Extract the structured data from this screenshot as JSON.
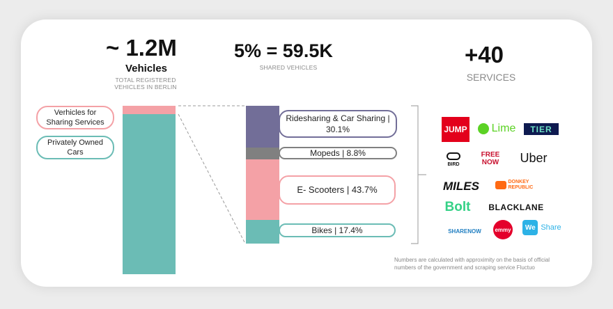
{
  "stats": {
    "total": {
      "value": "~ 1.2M",
      "label": "Vehicles",
      "caption": "TOTAL REGISTERED VEHICLES IN BERLIN"
    },
    "shared": {
      "value": "5% = 59.5K",
      "caption": "SHARED VEHICLES"
    },
    "services": {
      "value": "+40",
      "caption": "SERVICES"
    }
  },
  "legend": {
    "sharing": "Verhicles for Sharing Services",
    "private": "Privately Owned Cars"
  },
  "colors": {
    "sharing": "#f4a1a6",
    "private": "#6bbcb5",
    "ridesharing": "#726e98",
    "mopeds": "#808080",
    "scooters": "#f4a1a6",
    "bikes": "#6bbcb5"
  },
  "chart_data": [
    {
      "type": "bar",
      "stacked": true,
      "categories": [
        "Vehicles in Berlin"
      ],
      "series": [
        {
          "name": "Verhicles for Sharing Services",
          "values": [
            5
          ]
        },
        {
          "name": "Privately Owned Cars",
          "values": [
            95
          ]
        }
      ]
    },
    {
      "type": "bar",
      "stacked": true,
      "categories": [
        "Shared vehicles"
      ],
      "series": [
        {
          "name": "Ridesharing & Car Sharing",
          "values": [
            30.1
          ],
          "label": "Ridesharing & Car Sharing | 30.1%"
        },
        {
          "name": "Mopeds",
          "values": [
            8.8
          ],
          "label": "Mopeds | 8.8%"
        },
        {
          "name": "E- Scooters",
          "values": [
            43.7
          ],
          "label": "E- Scooters | 43.7%"
        },
        {
          "name": "Bikes",
          "values": [
            17.4
          ],
          "label": "Bikes | 17.4%"
        }
      ]
    }
  ],
  "logos": [
    {
      "name": "jump",
      "text": "JUMP",
      "color": "#e3001b"
    },
    {
      "name": "lime",
      "text": "Lime",
      "color": "#5cd225"
    },
    {
      "name": "tier",
      "text": "TIER",
      "color": "#0e1a50"
    },
    {
      "name": "bird",
      "text": "BIRD",
      "color": "#111111"
    },
    {
      "name": "freenow",
      "text": "FREE NOW",
      "color": "#c8102e"
    },
    {
      "name": "uber",
      "text": "Uber",
      "color": "#111111"
    },
    {
      "name": "miles",
      "text": "MILES",
      "color": "#111111"
    },
    {
      "name": "donkey",
      "text": "DONKEY REPUBLIC",
      "color": "#ff6a13"
    },
    {
      "name": "bolt",
      "text": "Bolt",
      "color": "#34d186"
    },
    {
      "name": "blacklane",
      "text": "BLACKLANE",
      "color": "#111111"
    },
    {
      "name": "sharenow",
      "text": "SHARENOW",
      "color": "#1f7ec1"
    },
    {
      "name": "emmy",
      "text": "emmy",
      "color": "#e4002b"
    },
    {
      "name": "weshare",
      "text": "Share",
      "color": "#2db2e6"
    }
  ],
  "note": "Numbers are calculated with approximity on the basis of official numbers of the government and scraping service Fluctuo"
}
